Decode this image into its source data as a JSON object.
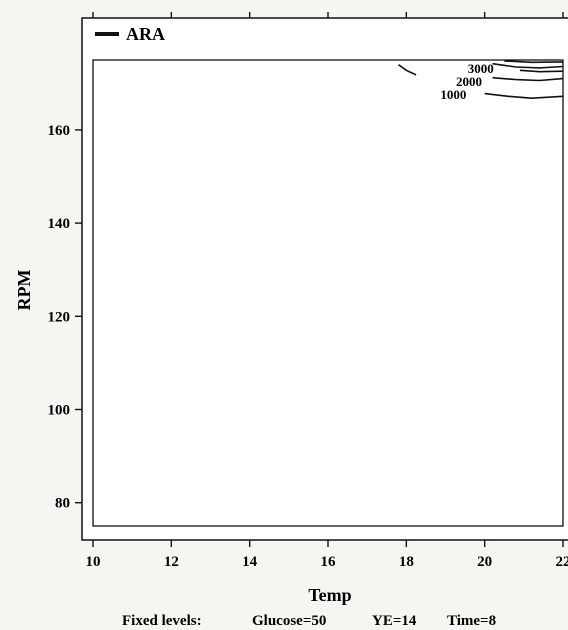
{
  "chart_data": {
    "type": "contour",
    "xlabel": "Temp",
    "ylabel": "RPM",
    "x_ticks": [
      10,
      12,
      14,
      16,
      18,
      20,
      22
    ],
    "y_ticks": [
      80,
      100,
      120,
      140,
      160
    ],
    "xlim": [
      10,
      22
    ],
    "ylim": [
      75,
      175
    ],
    "legend": {
      "label": "ARA",
      "position": "top-left"
    },
    "contours": [
      {
        "level": "1000",
        "points": [
          [
            20.0,
            167.8
          ],
          [
            20.6,
            167.2
          ],
          [
            21.2,
            166.8
          ],
          [
            22.0,
            167.2
          ]
        ],
        "label_at": [
          19.2,
          167.5
        ]
      },
      {
        "level": "2000",
        "points": [
          [
            20.2,
            171.2
          ],
          [
            20.8,
            170.8
          ],
          [
            21.4,
            170.6
          ],
          [
            22.0,
            171.0
          ]
        ],
        "label_at": [
          19.6,
          170.3
        ]
      },
      {
        "level": "3000",
        "points": [
          [
            17.8,
            174.0
          ],
          [
            18.0,
            172.8
          ],
          [
            18.25,
            171.8
          ]
        ],
        "label_at": [
          19.9,
          173.1
        ]
      },
      {
        "level": "",
        "points": [
          [
            20.2,
            174.2
          ],
          [
            20.8,
            173.5
          ],
          [
            21.4,
            173.3
          ],
          [
            22.0,
            173.6
          ]
        ]
      },
      {
        "level": "",
        "points": [
          [
            20.9,
            172.8
          ],
          [
            21.4,
            172.5
          ],
          [
            22.0,
            172.6
          ]
        ]
      },
      {
        "level": "",
        "points": [
          [
            20.5,
            174.8
          ],
          [
            21.2,
            174.5
          ],
          [
            22.0,
            174.6
          ]
        ]
      }
    ],
    "grid": false
  },
  "footer": {
    "prefix": "Fixed levels:",
    "items": [
      "Glucose=50",
      "YE=14",
      "Time=8"
    ]
  }
}
